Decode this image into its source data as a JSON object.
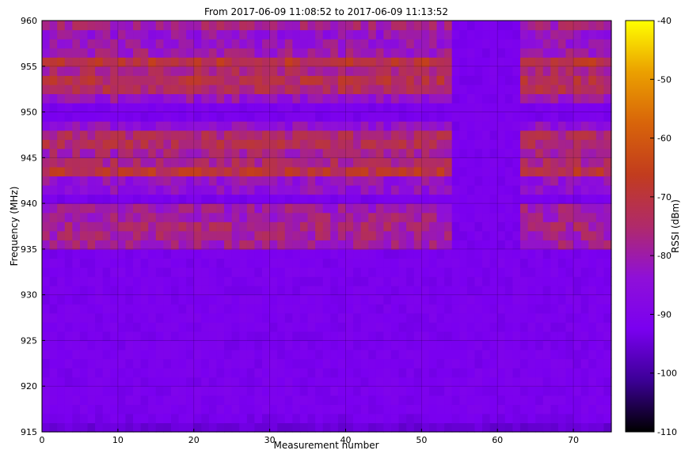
{
  "chart_data": {
    "type": "heatmap",
    "title": "From 2017-06-09 11:08:52 to 2017-06-09 11:13:52",
    "xlabel": "Measurement number",
    "ylabel": "Frequency (MHz)",
    "xlim": [
      0,
      75
    ],
    "ylim": [
      915,
      960
    ],
    "xticks": [
      "0",
      "10",
      "20",
      "30",
      "40",
      "50",
      "60",
      "70"
    ],
    "yticks": [
      "915",
      "920",
      "925",
      "930",
      "935",
      "940",
      "945",
      "950",
      "955",
      "960"
    ],
    "n_measurements": 75,
    "bin_width_mhz": 1,
    "colorbar": {
      "label": "RSSI (dBm)",
      "range": [
        -110,
        -40
      ],
      "ticks": [
        "-40",
        "-50",
        "-60",
        "-70",
        "-80",
        "-90",
        "-100",
        "-110"
      ],
      "colormap": "gnuplot",
      "colors": [
        "#000000",
        "#3c0096",
        "#7a00f0",
        "#8f10d8",
        "#b02a6a",
        "#c23c1e",
        "#d8640a",
        "#eba000",
        "#ffff00"
      ]
    },
    "baseline_dbm": -92,
    "bands": [
      {
        "freq_mhz": 915.5,
        "mean_dbm": -95
      },
      {
        "freq_mhz": 916.5,
        "mean_dbm": -93
      },
      {
        "freq_mhz": 935.5,
        "mean_dbm": -79
      },
      {
        "freq_mhz": 936.5,
        "mean_dbm": -78
      },
      {
        "freq_mhz": 937.5,
        "mean_dbm": -77
      },
      {
        "freq_mhz": 938.5,
        "mean_dbm": -79
      },
      {
        "freq_mhz": 939.5,
        "mean_dbm": -80
      },
      {
        "freq_mhz": 941.5,
        "mean_dbm": -84
      },
      {
        "freq_mhz": 942.5,
        "mean_dbm": -83
      },
      {
        "freq_mhz": 943.5,
        "mean_dbm": -70
      },
      {
        "freq_mhz": 944.5,
        "mean_dbm": -76
      },
      {
        "freq_mhz": 945.5,
        "mean_dbm": -78
      },
      {
        "freq_mhz": 946.5,
        "mean_dbm": -74
      },
      {
        "freq_mhz": 947.5,
        "mean_dbm": -75
      },
      {
        "freq_mhz": 948.5,
        "mean_dbm": -84
      },
      {
        "freq_mhz": 951.5,
        "mean_dbm": -82
      },
      {
        "freq_mhz": 952.5,
        "mean_dbm": -74
      },
      {
        "freq_mhz": 953.5,
        "mean_dbm": -72
      },
      {
        "freq_mhz": 954.5,
        "mean_dbm": -76
      },
      {
        "freq_mhz": 955.5,
        "mean_dbm": -70
      },
      {
        "freq_mhz": 956.5,
        "mean_dbm": -80
      },
      {
        "freq_mhz": 957.5,
        "mean_dbm": -82
      },
      {
        "freq_mhz": 958.5,
        "mean_dbm": -83
      },
      {
        "freq_mhz": 959.5,
        "mean_dbm": -78
      }
    ],
    "grid": true
  }
}
